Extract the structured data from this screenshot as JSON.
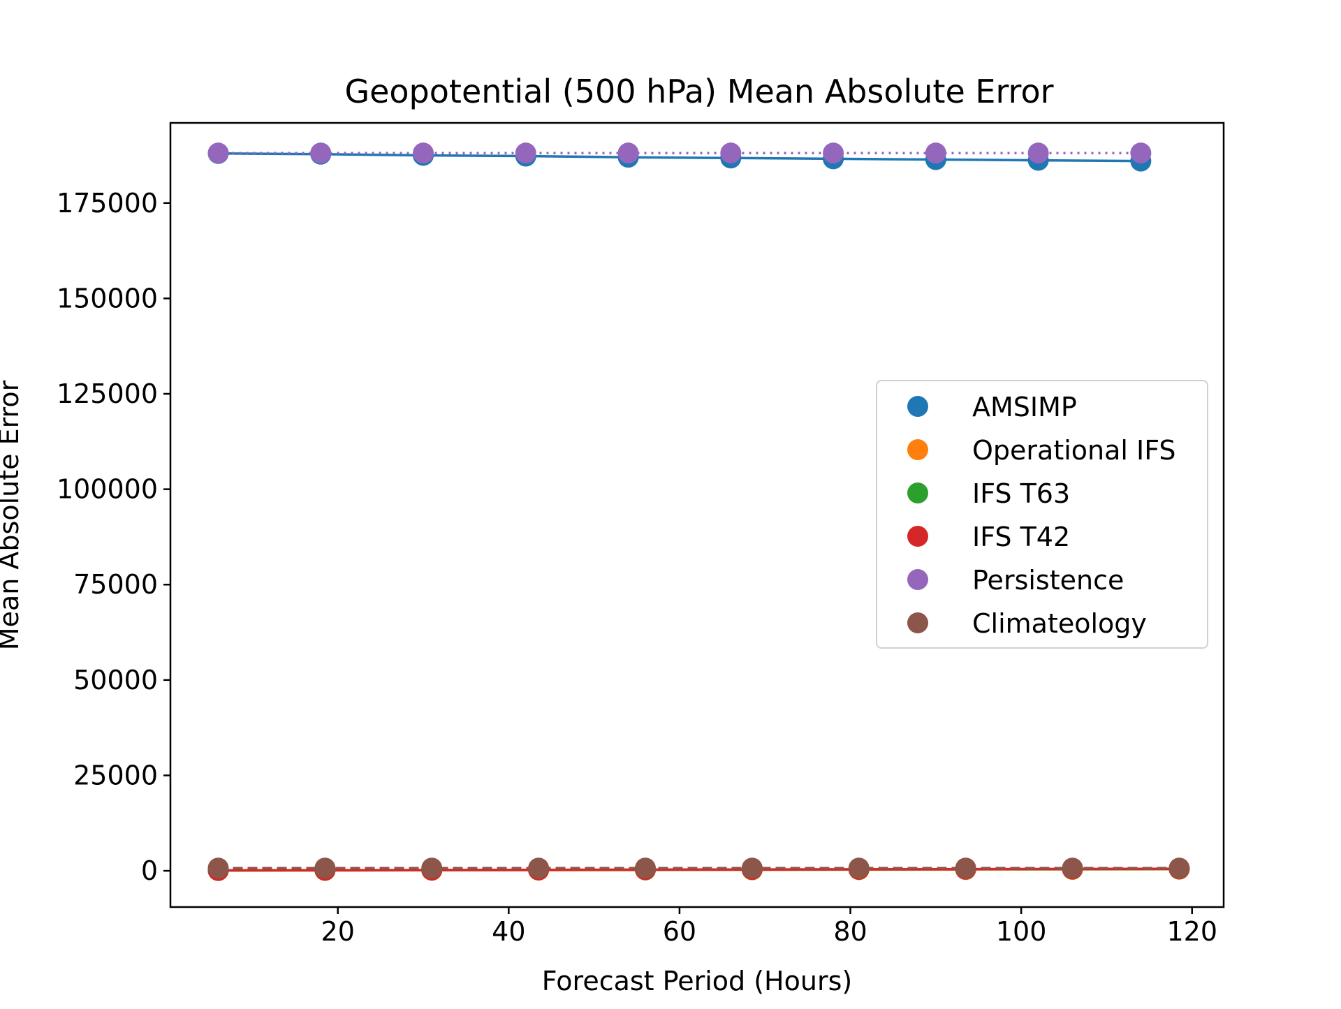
{
  "chart_data": {
    "type": "line",
    "title": "Geopotential (500 hPa) Mean Absolute Error",
    "xlabel": "Forecast Period (Hours)",
    "ylabel": "Mean Absolute Error",
    "xlim": [
      0.4,
      123.7
    ],
    "ylim": [
      -9500,
      196000
    ],
    "xticks": [
      20,
      40,
      60,
      80,
      100,
      120
    ],
    "yticks": [
      0,
      25000,
      50000,
      75000,
      100000,
      125000,
      150000,
      175000
    ],
    "grid": false,
    "legend_position": "center-right",
    "series": [
      {
        "name": "AMSIMP",
        "color": "#1f77b4",
        "line_style": "solid",
        "x": [
          6,
          18,
          30,
          42,
          54,
          66,
          78,
          90,
          102,
          114
        ],
        "y": [
          188000,
          187800,
          187500,
          187300,
          187000,
          186800,
          186600,
          186400,
          186200,
          186000
        ]
      },
      {
        "name": "Operational IFS",
        "color": "#ff7f0e",
        "line_style": "solid",
        "x": [
          6,
          18.5,
          31,
          43.5,
          56,
          68.5,
          81,
          93.5,
          106,
          118.5
        ],
        "y": [
          60,
          100,
          140,
          180,
          220,
          260,
          300,
          340,
          380,
          420
        ]
      },
      {
        "name": "IFS T63",
        "color": "#2ca02c",
        "line_style": "solid",
        "x": [
          6,
          18.5,
          31,
          43.5,
          56,
          68.5,
          81,
          93.5,
          106,
          118.5
        ],
        "y": [
          80,
          130,
          180,
          230,
          280,
          330,
          380,
          420,
          460,
          500
        ]
      },
      {
        "name": "IFS T42",
        "color": "#d62728",
        "line_style": "solid",
        "x": [
          6,
          18.5,
          31,
          43.5,
          56,
          68.5,
          81,
          93.5,
          106,
          118.5
        ],
        "y": [
          100,
          150,
          200,
          250,
          300,
          350,
          400,
          440,
          480,
          520
        ]
      },
      {
        "name": "Persistence",
        "color": "#9467bd",
        "line_style": "dotted",
        "x": [
          6,
          18,
          30,
          42,
          54,
          66,
          78,
          90,
          102,
          114
        ],
        "y": [
          188100,
          188100,
          188100,
          188100,
          188100,
          188100,
          188100,
          188100,
          188100,
          188100
        ]
      },
      {
        "name": "Climateology",
        "color": "#8c564b",
        "line_style": "dashed",
        "x": [
          6,
          18.5,
          31,
          43.5,
          56,
          68.5,
          81,
          93.5,
          106,
          118.5
        ],
        "y": [
          700,
          700,
          700,
          700,
          700,
          700,
          700,
          700,
          700,
          700
        ]
      }
    ]
  }
}
